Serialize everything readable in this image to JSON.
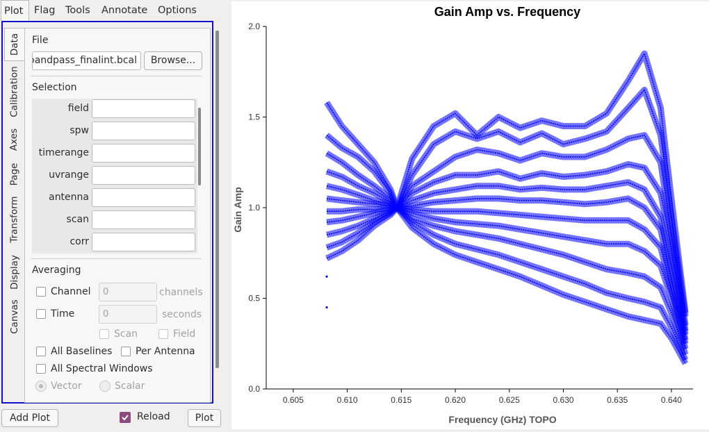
{
  "menu": {
    "plot": "Plot",
    "flag": "Flag",
    "tools": "Tools",
    "annotate": "Annotate",
    "options": "Options"
  },
  "tabs": [
    "Data",
    "Calibration",
    "Axes",
    "Page",
    "Transform",
    "Display",
    "Canvas"
  ],
  "file": {
    "title": "File",
    "value": "oandpass_finalint.bcal",
    "browse": "Browse..."
  },
  "selection": {
    "title": "Selection",
    "fields": [
      "field",
      "spw",
      "timerange",
      "uvrange",
      "antenna",
      "scan",
      "corr"
    ]
  },
  "averaging": {
    "title": "Averaging",
    "channel": "Channel",
    "channel_value": "0",
    "channel_unit": "channels",
    "time": "Time",
    "time_value": "0",
    "time_unit": "seconds",
    "scan": "Scan",
    "field": "Field",
    "all_baselines": "All Baselines",
    "per_antenna": "Per Antenna",
    "all_spw": "All Spectral Windows",
    "vector": "Vector",
    "scalar": "Scalar"
  },
  "bottom": {
    "add_plot": "Add Plot",
    "reload": "Reload",
    "plot": "Plot"
  },
  "colors": {
    "series": "#0000ff",
    "reload_check": "#8c4a81",
    "frame": "#1010c8"
  },
  "chart_data": {
    "type": "scatter",
    "title": "Gain Amp vs. Frequency",
    "xlabel": "Frequency (GHz) TOPO",
    "ylabel": "Gain Amp",
    "xlim": [
      0.6025,
      0.642
    ],
    "ylim": [
      0.0,
      2.0
    ],
    "xticks": [
      "0.605",
      "0.610",
      "0.615",
      "0.620",
      "0.625",
      "0.630",
      "0.635",
      "0.640"
    ],
    "yticks": [
      "0.0",
      "0.5",
      "1.0",
      "1.5",
      "2.0"
    ],
    "x": [
      0.6081,
      0.6095,
      0.611,
      0.6125,
      0.614,
      0.6146,
      0.616,
      0.618,
      0.62,
      0.622,
      0.624,
      0.626,
      0.628,
      0.63,
      0.632,
      0.634,
      0.636,
      0.6375,
      0.639,
      0.64,
      0.6413
    ],
    "series": [
      {
        "values": [
          1.58,
          1.45,
          1.35,
          1.25,
          1.1,
          1.0,
          1.27,
          1.45,
          1.52,
          1.4,
          1.5,
          1.44,
          1.48,
          1.45,
          1.45,
          1.52,
          1.7,
          1.85,
          1.55,
          1.05,
          0.42
        ]
      },
      {
        "values": [
          1.4,
          1.33,
          1.28,
          1.2,
          1.08,
          1.0,
          1.18,
          1.35,
          1.42,
          1.38,
          1.42,
          1.36,
          1.41,
          1.35,
          1.38,
          1.42,
          1.55,
          1.65,
          1.4,
          0.95,
          0.4
        ]
      },
      {
        "values": [
          1.3,
          1.25,
          1.18,
          1.12,
          1.05,
          1.0,
          1.12,
          1.2,
          1.28,
          1.32,
          1.3,
          1.26,
          1.3,
          1.28,
          1.28,
          1.32,
          1.38,
          1.4,
          1.25,
          0.85,
          0.35
        ]
      },
      {
        "values": [
          1.2,
          1.17,
          1.12,
          1.08,
          1.03,
          1.0,
          1.08,
          1.14,
          1.18,
          1.18,
          1.2,
          1.16,
          1.19,
          1.17,
          1.18,
          1.2,
          1.24,
          1.22,
          1.08,
          0.78,
          0.32
        ]
      },
      {
        "values": [
          1.12,
          1.1,
          1.07,
          1.04,
          1.02,
          1.0,
          1.04,
          1.08,
          1.1,
          1.12,
          1.12,
          1.1,
          1.11,
          1.1,
          1.1,
          1.12,
          1.14,
          1.1,
          0.95,
          0.68,
          0.3
        ]
      },
      {
        "values": [
          1.05,
          1.04,
          1.03,
          1.02,
          1.01,
          1.0,
          1.01,
          1.03,
          1.04,
          1.05,
          1.05,
          1.04,
          1.04,
          1.03,
          1.02,
          1.03,
          1.05,
          1.0,
          0.88,
          0.6,
          0.27
        ]
      },
      {
        "values": [
          0.98,
          0.98,
          0.99,
          0.99,
          1.0,
          1.0,
          0.99,
          0.98,
          0.98,
          0.98,
          0.97,
          0.96,
          0.95,
          0.94,
          0.93,
          0.93,
          0.93,
          0.88,
          0.78,
          0.55,
          0.25
        ]
      },
      {
        "values": [
          0.92,
          0.93,
          0.95,
          0.97,
          0.99,
          1.0,
          0.97,
          0.94,
          0.92,
          0.91,
          0.9,
          0.88,
          0.86,
          0.84,
          0.82,
          0.8,
          0.8,
          0.76,
          0.68,
          0.5,
          0.22
        ]
      },
      {
        "values": [
          0.85,
          0.87,
          0.9,
          0.94,
          0.98,
          1.0,
          0.94,
          0.9,
          0.87,
          0.85,
          0.83,
          0.8,
          0.77,
          0.74,
          0.7,
          0.66,
          0.64,
          0.62,
          0.56,
          0.42,
          0.19
        ]
      },
      {
        "values": [
          0.78,
          0.81,
          0.86,
          0.92,
          0.97,
          1.0,
          0.92,
          0.85,
          0.8,
          0.77,
          0.74,
          0.7,
          0.66,
          0.62,
          0.58,
          0.53,
          0.5,
          0.48,
          0.45,
          0.34,
          0.16
        ]
      },
      {
        "values": [
          0.72,
          0.76,
          0.82,
          0.9,
          0.96,
          1.0,
          0.89,
          0.8,
          0.74,
          0.7,
          0.66,
          0.62,
          0.57,
          0.52,
          0.48,
          0.44,
          0.4,
          0.38,
          0.36,
          0.28,
          0.14
        ]
      }
    ],
    "outliers": [
      {
        "x": 0.6081,
        "y": 0.62
      },
      {
        "x": 0.6081,
        "y": 0.45
      }
    ]
  }
}
